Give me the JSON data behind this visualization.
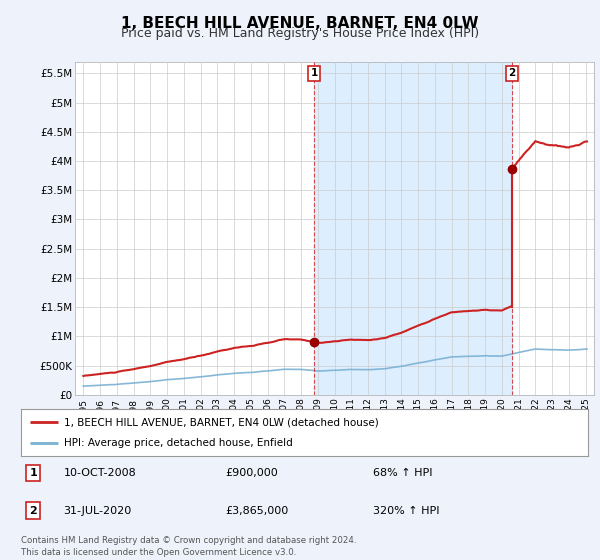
{
  "title": "1, BEECH HILL AVENUE, BARNET, EN4 0LW",
  "subtitle": "Price paid vs. HM Land Registry's House Price Index (HPI)",
  "title_fontsize": 11,
  "subtitle_fontsize": 9,
  "hpi_color": "#7ab0d4",
  "price_color": "#cc2222",
  "dot_color": "#990000",
  "vline_color": "#cc2222",
  "shade_color": "#ddeeff",
  "sale1_year": 2008.78,
  "sale1_value": 900000,
  "sale1_label": "1",
  "sale2_year": 2020.58,
  "sale2_value": 3865000,
  "sale2_label": "2",
  "ylim": [
    0,
    5700000
  ],
  "xlim_left": 1994.5,
  "xlim_right": 2025.5,
  "ytick_values": [
    0,
    500000,
    1000000,
    1500000,
    2000000,
    2500000,
    3000000,
    3500000,
    4000000,
    4500000,
    5000000,
    5500000
  ],
  "ytick_labels": [
    "£0",
    "£500K",
    "£1M",
    "£1.5M",
    "£2M",
    "£2.5M",
    "£3M",
    "£3.5M",
    "£4M",
    "£4.5M",
    "£5M",
    "£5.5M"
  ],
  "xtick_years": [
    1995,
    1996,
    1997,
    1998,
    1999,
    2000,
    2001,
    2002,
    2003,
    2004,
    2005,
    2006,
    2007,
    2008,
    2009,
    2010,
    2011,
    2012,
    2013,
    2014,
    2015,
    2016,
    2017,
    2018,
    2019,
    2020,
    2021,
    2022,
    2023,
    2024,
    2025
  ],
  "legend_label1": "1, BEECH HILL AVENUE, BARNET, EN4 0LW (detached house)",
  "legend_label2": "HPI: Average price, detached house, Enfield",
  "table_rows": [
    {
      "num": "1",
      "date": "10-OCT-2008",
      "price": "£900,000",
      "hpi": "68% ↑ HPI"
    },
    {
      "num": "2",
      "date": "31-JUL-2020",
      "price": "£3,865,000",
      "hpi": "320% ↑ HPI"
    }
  ],
  "footnote": "Contains HM Land Registry data © Crown copyright and database right 2024.\nThis data is licensed under the Open Government Licence v3.0.",
  "bg_color": "#eef2fa",
  "plot_bg_color": "#ffffff",
  "grid_color": "#cccccc"
}
